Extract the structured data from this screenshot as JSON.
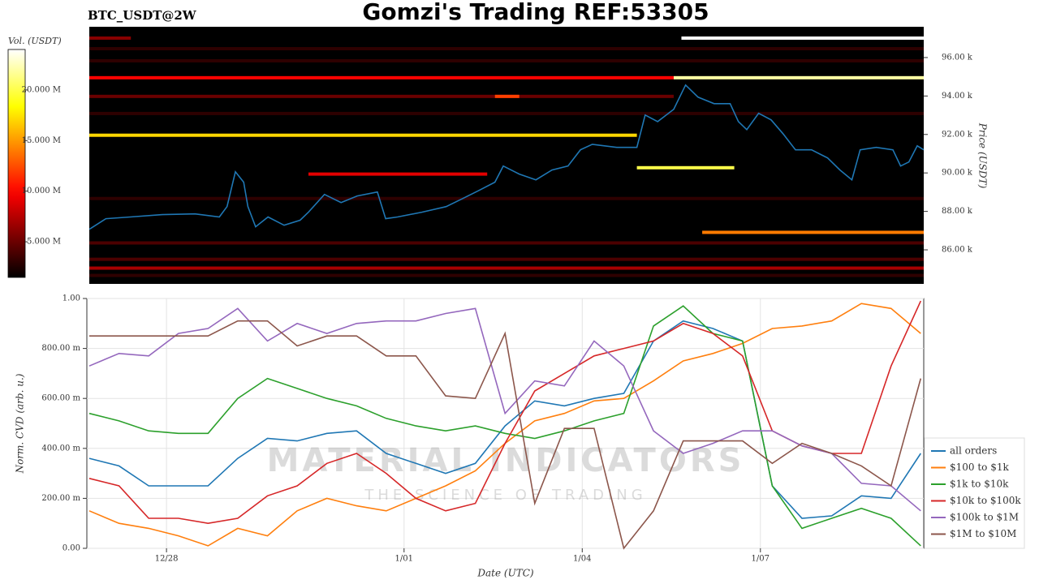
{
  "header": {
    "title": "Gomzi's Trading REF:53305",
    "symbol": "BTC_USDT@2W",
    "watermark": [
      "MATERIAL INDICATORS",
      "THE SCIENCE OF TRADING"
    ]
  },
  "chart_data": [
    {
      "type": "heatmap",
      "colorbar_label": "Vol. (USDT)",
      "ylabel": "Price (USDT)",
      "colormap": "hot",
      "zlim": [
        1480000,
        24000000
      ],
      "zticks": [
        {
          "value": 5000000,
          "label": "5.000 M"
        },
        {
          "value": 10000000,
          "label": "10.000 M"
        },
        {
          "value": 15000000,
          "label": "15.000 M"
        },
        {
          "value": 20000000,
          "label": "20.000 M"
        }
      ],
      "xlim": [
        -1.3,
        12.75
      ],
      "ylim": [
        84230,
        97600
      ],
      "yticks": [
        {
          "value": 86000,
          "label": "86.00 k"
        },
        {
          "value": 88000,
          "label": "88.00 k"
        },
        {
          "value": 90000,
          "label": "90.00 k"
        },
        {
          "value": 92000,
          "label": "92.00 k"
        },
        {
          "value": 94000,
          "label": "94.00 k"
        },
        {
          "value": 96000,
          "label": "96.00 k"
        }
      ],
      "bands": [
        {
          "price": 96460,
          "start": -1.3,
          "end": 12.75,
          "volume": 3000000
        },
        {
          "price": 95830,
          "start": -1.3,
          "end": 12.75,
          "volume": 3000000
        },
        {
          "price": 93090,
          "start": -1.3,
          "end": 12.75,
          "volume": 3000000
        },
        {
          "price": 88670,
          "start": -1.3,
          "end": 12.75,
          "volume": 3000000
        },
        {
          "price": 86360,
          "start": -1.3,
          "end": 12.75,
          "volume": 4000000
        },
        {
          "price": 84670,
          "start": -1.3,
          "end": 12.75,
          "volume": 3000000
        },
        {
          "price": 85510,
          "start": -1.3,
          "end": 12.75,
          "volume": 4000000
        },
        {
          "price": 85050,
          "start": -1.3,
          "end": 12.75,
          "volume": 7000000
        },
        {
          "price": 97010,
          "start": -1.3,
          "end": -0.6,
          "volume": 6000000
        },
        {
          "price": 97010,
          "start": 8.67,
          "end": 12.75,
          "volume": 24000000
        },
        {
          "price": 94950,
          "start": -1.3,
          "end": 8.54,
          "volume": 10000000
        },
        {
          "price": 94950,
          "start": 8.54,
          "end": 12.75,
          "volume": 22000000
        },
        {
          "price": 93980,
          "start": -1.3,
          "end": 8.54,
          "volume": 5000000
        },
        {
          "price": 93980,
          "start": 5.53,
          "end": 5.94,
          "volume": 12000000
        },
        {
          "price": 91960,
          "start": -1.3,
          "end": 7.92,
          "volume": 17000000
        },
        {
          "price": 90270,
          "start": 7.92,
          "end": 9.56,
          "volume": 20000000
        },
        {
          "price": 89940,
          "start": 2.39,
          "end": 5.4,
          "volume": 9000000
        },
        {
          "price": 86910,
          "start": 9.02,
          "end": 12.75,
          "volume": 14000000
        }
      ],
      "price_line": {
        "color": "#1f77b4",
        "x": [
          -1.3,
          -1.02,
          -0.61,
          -0.07,
          0.48,
          0.89,
          1.02,
          1.16,
          1.3,
          1.37,
          1.5,
          1.71,
          1.98,
          2.25,
          2.39,
          2.66,
          2.94,
          3.21,
          3.55,
          3.69,
          3.89,
          4.3,
          4.71,
          4.99,
          5.26,
          5.53,
          5.67,
          5.94,
          6.22,
          6.49,
          6.76,
          6.97,
          7.17,
          7.58,
          7.92,
          8.06,
          8.27,
          8.54,
          8.74,
          8.95,
          9.22,
          9.49,
          9.63,
          9.77,
          9.97,
          10.18,
          10.38,
          10.59,
          10.86,
          11.13,
          11.34,
          11.54,
          11.68,
          11.95,
          12.23,
          12.36,
          12.5,
          12.64,
          12.75
        ],
        "values": [
          87070,
          87620,
          87710,
          87830,
          87870,
          87710,
          88250,
          90060,
          89520,
          88250,
          87200,
          87710,
          87280,
          87540,
          87960,
          88880,
          88460,
          88800,
          89010,
          87620,
          87710,
          87960,
          88250,
          88670,
          89090,
          89520,
          90360,
          89940,
          89640,
          90150,
          90360,
          91200,
          91490,
          91330,
          91330,
          93010,
          92670,
          93310,
          94570,
          93940,
          93600,
          93600,
          92670,
          92250,
          93100,
          92760,
          92040,
          91200,
          91200,
          90780,
          90150,
          89640,
          91200,
          91330,
          91200,
          90360,
          90570,
          91410,
          91200
        ]
      }
    },
    {
      "type": "line",
      "ylabel": "Norm. CVD (arb. u.)",
      "xlabel": "Date (UTC)",
      "grid": true,
      "legend": "right",
      "xlim": [
        -1.3,
        12.75
      ],
      "xticks": [
        {
          "value": 0,
          "label": "12/28"
        },
        {
          "value": 4,
          "label": "1/01"
        },
        {
          "value": 7,
          "label": "1/04"
        },
        {
          "value": 10,
          "label": "1/07"
        }
      ],
      "ylim": [
        0,
        1
      ],
      "yticks": [
        {
          "value": 0,
          "label": "0.00"
        },
        {
          "value": 0.2,
          "label": "200.00 m"
        },
        {
          "value": 0.4,
          "label": "400.00 m"
        },
        {
          "value": 0.6,
          "label": "600.00 m"
        },
        {
          "value": 0.8,
          "label": "800.00 m"
        },
        {
          "value": 1,
          "label": "1.00"
        }
      ],
      "x": [
        -1.3,
        -0.8,
        -0.3,
        0.2,
        0.7,
        1.2,
        1.7,
        2.2,
        2.7,
        3.2,
        3.7,
        4.2,
        4.7,
        5.2,
        5.7,
        6.2,
        6.7,
        7.2,
        7.7,
        8.2,
        8.7,
        9.2,
        9.7,
        10.2,
        10.7,
        11.2,
        11.7,
        12.2,
        12.7
      ],
      "series": [
        {
          "name": "all orders",
          "color": "#1f77b4",
          "values": [
            0.36,
            0.33,
            0.25,
            0.25,
            0.25,
            0.36,
            0.44,
            0.43,
            0.46,
            0.47,
            0.38,
            0.34,
            0.3,
            0.34,
            0.49,
            0.59,
            0.57,
            0.6,
            0.62,
            0.83,
            0.91,
            0.88,
            0.83,
            0.25,
            0.12,
            0.13,
            0.21,
            0.2,
            0.38
          ]
        },
        {
          "name": "$100 to $1k",
          "color": "#ff7f0e",
          "values": [
            0.15,
            0.1,
            0.08,
            0.05,
            0.01,
            0.08,
            0.05,
            0.15,
            0.2,
            0.17,
            0.15,
            0.2,
            0.25,
            0.31,
            0.42,
            0.51,
            0.54,
            0.59,
            0.6,
            0.67,
            0.75,
            0.78,
            0.82,
            0.88,
            0.89,
            0.91,
            0.98,
            0.96,
            0.86
          ]
        },
        {
          "name": "$1k to $10k",
          "color": "#2ca02c",
          "values": [
            0.54,
            0.51,
            0.47,
            0.46,
            0.46,
            0.6,
            0.68,
            0.64,
            0.6,
            0.57,
            0.52,
            0.49,
            0.47,
            0.49,
            0.46,
            0.44,
            0.47,
            0.51,
            0.54,
            0.89,
            0.97,
            0.86,
            0.83,
            0.25,
            0.08,
            0.12,
            0.16,
            0.12,
            0.01
          ]
        },
        {
          "name": "$10k to $100k",
          "color": "#d62728",
          "values": [
            0.28,
            0.25,
            0.12,
            0.12,
            0.1,
            0.12,
            0.21,
            0.25,
            0.34,
            0.38,
            0.3,
            0.2,
            0.15,
            0.18,
            0.42,
            0.63,
            0.7,
            0.77,
            0.8,
            0.83,
            0.9,
            0.86,
            0.77,
            0.47,
            0.41,
            0.38,
            0.38,
            0.73,
            0.99
          ]
        },
        {
          "name": "$100k to $1M",
          "color": "#9467bd",
          "values": [
            0.73,
            0.78,
            0.77,
            0.86,
            0.88,
            0.96,
            0.83,
            0.9,
            0.86,
            0.9,
            0.91,
            0.91,
            0.94,
            0.96,
            0.54,
            0.67,
            0.65,
            0.83,
            0.73,
            0.47,
            0.38,
            0.42,
            0.47,
            0.47,
            0.41,
            0.38,
            0.26,
            0.25,
            0.15
          ]
        },
        {
          "name": "$1M to $10M",
          "color": "#8c564b",
          "values": [
            0.85,
            0.85,
            0.85,
            0.85,
            0.85,
            0.91,
            0.91,
            0.81,
            0.85,
            0.85,
            0.77,
            0.77,
            0.61,
            0.6,
            0.86,
            0.18,
            0.48,
            0.48,
            0,
            0.15,
            0.43,
            0.43,
            0.43,
            0.34,
            0.42,
            0.38,
            0.33,
            0.25,
            0.68
          ]
        }
      ]
    }
  ]
}
